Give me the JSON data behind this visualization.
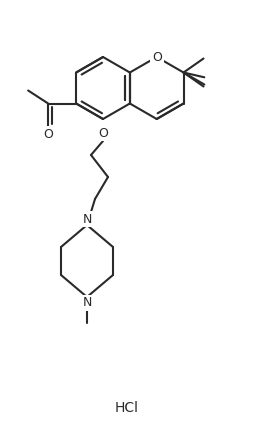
{
  "background_color": "#ffffff",
  "line_color": "#2a2a2a",
  "line_width": 1.5,
  "text_color": "#2a2a2a",
  "hcl_text": "HCl",
  "o_text": "O",
  "n_text": "N",
  "figsize": [
    2.54,
    4.25
  ],
  "dpi": 100
}
